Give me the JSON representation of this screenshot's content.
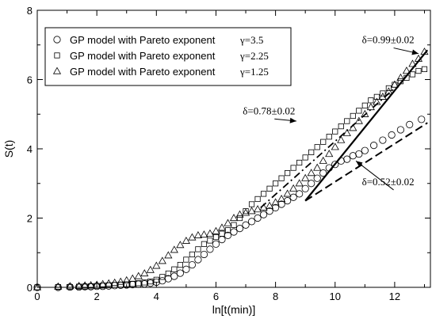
{
  "chart_data": {
    "type": "scatter",
    "xlabel": "ln[t(min)]",
    "ylabel": "S(t)",
    "xlim": [
      0,
      13.2
    ],
    "ylim": [
      0,
      8
    ],
    "xticks": [
      "0",
      "2",
      "4",
      "6",
      "8",
      "10",
      "12"
    ],
    "yticks": [
      "0",
      "2",
      "4",
      "6",
      "8"
    ],
    "xtick_values": [
      0,
      2,
      4,
      6,
      8,
      10,
      12
    ],
    "ytick_values": [
      0,
      2,
      4,
      6,
      8
    ],
    "legend_position": "top-left",
    "series": [
      {
        "name": "GP model with Pareto exponent",
        "gamma_label": "γ=3.5",
        "marker": "circle",
        "x": [
          0.0,
          0.7,
          1.1,
          1.4,
          1.6,
          1.8,
          2.0,
          2.2,
          2.4,
          2.6,
          2.8,
          3.0,
          3.2,
          3.4,
          3.6,
          3.8,
          4.0,
          4.2,
          4.4,
          4.6,
          4.8,
          5.0,
          5.2,
          5.4,
          5.6,
          5.8,
          6.0,
          6.2,
          6.4,
          6.6,
          6.8,
          7.0,
          7.2,
          7.4,
          7.6,
          7.8,
          8.0,
          8.2,
          8.4,
          8.6,
          8.8,
          9.0,
          9.2,
          9.4,
          9.6,
          9.8,
          10.0,
          10.2,
          10.4,
          10.6,
          10.8,
          11.0,
          11.3,
          11.6,
          11.9,
          12.2,
          12.5,
          12.9
        ],
        "y": [
          0.0,
          0.0,
          0.01,
          0.01,
          0.02,
          0.02,
          0.03,
          0.03,
          0.04,
          0.05,
          0.06,
          0.07,
          0.08,
          0.09,
          0.1,
          0.12,
          0.15,
          0.19,
          0.25,
          0.32,
          0.41,
          0.52,
          0.65,
          0.8,
          0.95,
          1.1,
          1.25,
          1.38,
          1.5,
          1.6,
          1.7,
          1.8,
          1.9,
          2.0,
          2.1,
          2.2,
          2.3,
          2.4,
          2.5,
          2.6,
          2.7,
          2.85,
          3.0,
          3.15,
          3.3,
          3.45,
          3.55,
          3.65,
          3.7,
          3.8,
          3.85,
          3.95,
          4.1,
          4.25,
          4.4,
          4.55,
          4.7,
          4.85
        ]
      },
      {
        "name": "GP model with Pareto exponent",
        "gamma_label": "γ=2.25",
        "marker": "square",
        "x": [
          0.0,
          0.7,
          1.1,
          1.4,
          1.6,
          1.8,
          2.0,
          2.2,
          2.4,
          2.6,
          2.8,
          3.0,
          3.2,
          3.4,
          3.6,
          3.8,
          4.0,
          4.2,
          4.4,
          4.6,
          4.8,
          5.0,
          5.2,
          5.4,
          5.6,
          5.8,
          6.0,
          6.2,
          6.4,
          6.6,
          6.8,
          7.0,
          7.2,
          7.4,
          7.6,
          7.8,
          8.0,
          8.2,
          8.4,
          8.6,
          8.8,
          9.0,
          9.2,
          9.4,
          9.6,
          9.8,
          10.0,
          10.2,
          10.4,
          10.6,
          10.8,
          11.0,
          11.2,
          11.4,
          11.6,
          11.8,
          12.0,
          12.2,
          12.4,
          12.6,
          12.8,
          13.0
        ],
        "y": [
          0.0,
          0.01,
          0.01,
          0.02,
          0.02,
          0.03,
          0.04,
          0.05,
          0.06,
          0.07,
          0.08,
          0.09,
          0.1,
          0.12,
          0.14,
          0.17,
          0.22,
          0.3,
          0.4,
          0.52,
          0.65,
          0.8,
          0.95,
          1.1,
          1.25,
          1.35,
          1.45,
          1.55,
          1.65,
          1.8,
          2.0,
          2.2,
          2.4,
          2.55,
          2.7,
          2.85,
          3.0,
          3.15,
          3.3,
          3.45,
          3.6,
          3.75,
          3.9,
          4.05,
          4.2,
          4.35,
          4.5,
          4.65,
          4.8,
          4.95,
          5.1,
          5.25,
          5.4,
          5.5,
          5.6,
          5.75,
          5.85,
          5.95,
          6.05,
          6.15,
          6.25,
          6.3
        ]
      },
      {
        "name": "GP model with Pareto exponent",
        "gamma_label": "γ=1.25",
        "marker": "triangle",
        "x": [
          0.0,
          0.7,
          1.1,
          1.4,
          1.6,
          1.8,
          2.0,
          2.2,
          2.4,
          2.6,
          2.8,
          3.0,
          3.2,
          3.4,
          3.6,
          3.8,
          4.0,
          4.2,
          4.4,
          4.6,
          4.8,
          5.0,
          5.2,
          5.4,
          5.6,
          5.8,
          6.0,
          6.2,
          6.4,
          6.6,
          6.8,
          7.0,
          7.2,
          7.4,
          7.6,
          7.8,
          8.0,
          8.2,
          8.4,
          8.6,
          8.8,
          9.0,
          9.2,
          9.4,
          9.6,
          9.8,
          10.0,
          10.2,
          10.4,
          10.6,
          10.8,
          11.0,
          11.2,
          11.4,
          11.6,
          11.8,
          12.0,
          12.2,
          12.4,
          12.6,
          12.8,
          13.0
        ],
        "y": [
          0.0,
          0.02,
          0.03,
          0.04,
          0.05,
          0.06,
          0.07,
          0.09,
          0.11,
          0.13,
          0.16,
          0.2,
          0.25,
          0.32,
          0.4,
          0.5,
          0.62,
          0.76,
          0.92,
          1.08,
          1.22,
          1.34,
          1.44,
          1.5,
          1.52,
          1.55,
          1.62,
          1.72,
          1.85,
          2.0,
          2.1,
          2.15,
          2.2,
          2.25,
          2.3,
          2.35,
          2.45,
          2.55,
          2.7,
          2.85,
          3.0,
          3.15,
          3.3,
          3.45,
          3.65,
          3.85,
          4.05,
          4.25,
          4.45,
          4.6,
          4.8,
          5.0,
          5.2,
          5.35,
          5.5,
          5.65,
          5.85,
          6.05,
          6.25,
          6.45,
          6.6,
          6.8
        ]
      }
    ],
    "fit_lines": [
      {
        "style": "solid",
        "x": [
          9.0,
          13.1
        ],
        "y": [
          2.5,
          6.85
        ]
      },
      {
        "style": "dash-dot",
        "x": [
          7.5,
          12.0
        ],
        "y": [
          2.3,
          5.75
        ]
      },
      {
        "style": "dashed",
        "x": [
          9.0,
          13.1
        ],
        "y": [
          2.5,
          4.75
        ]
      }
    ],
    "annotations": [
      {
        "text": "δ=0.99±0.02",
        "x": 10.9,
        "y": 7.05,
        "arrow_to": [
          12.8,
          6.75
        ]
      },
      {
        "text": "δ=0.78±0.02",
        "x": 6.9,
        "y": 5.0,
        "arrow_to": [
          8.7,
          4.8
        ]
      },
      {
        "text": "δ=0.52±0.02",
        "x": 10.9,
        "y": 2.95,
        "arrow_to": [
          10.7,
          3.65
        ]
      }
    ]
  }
}
